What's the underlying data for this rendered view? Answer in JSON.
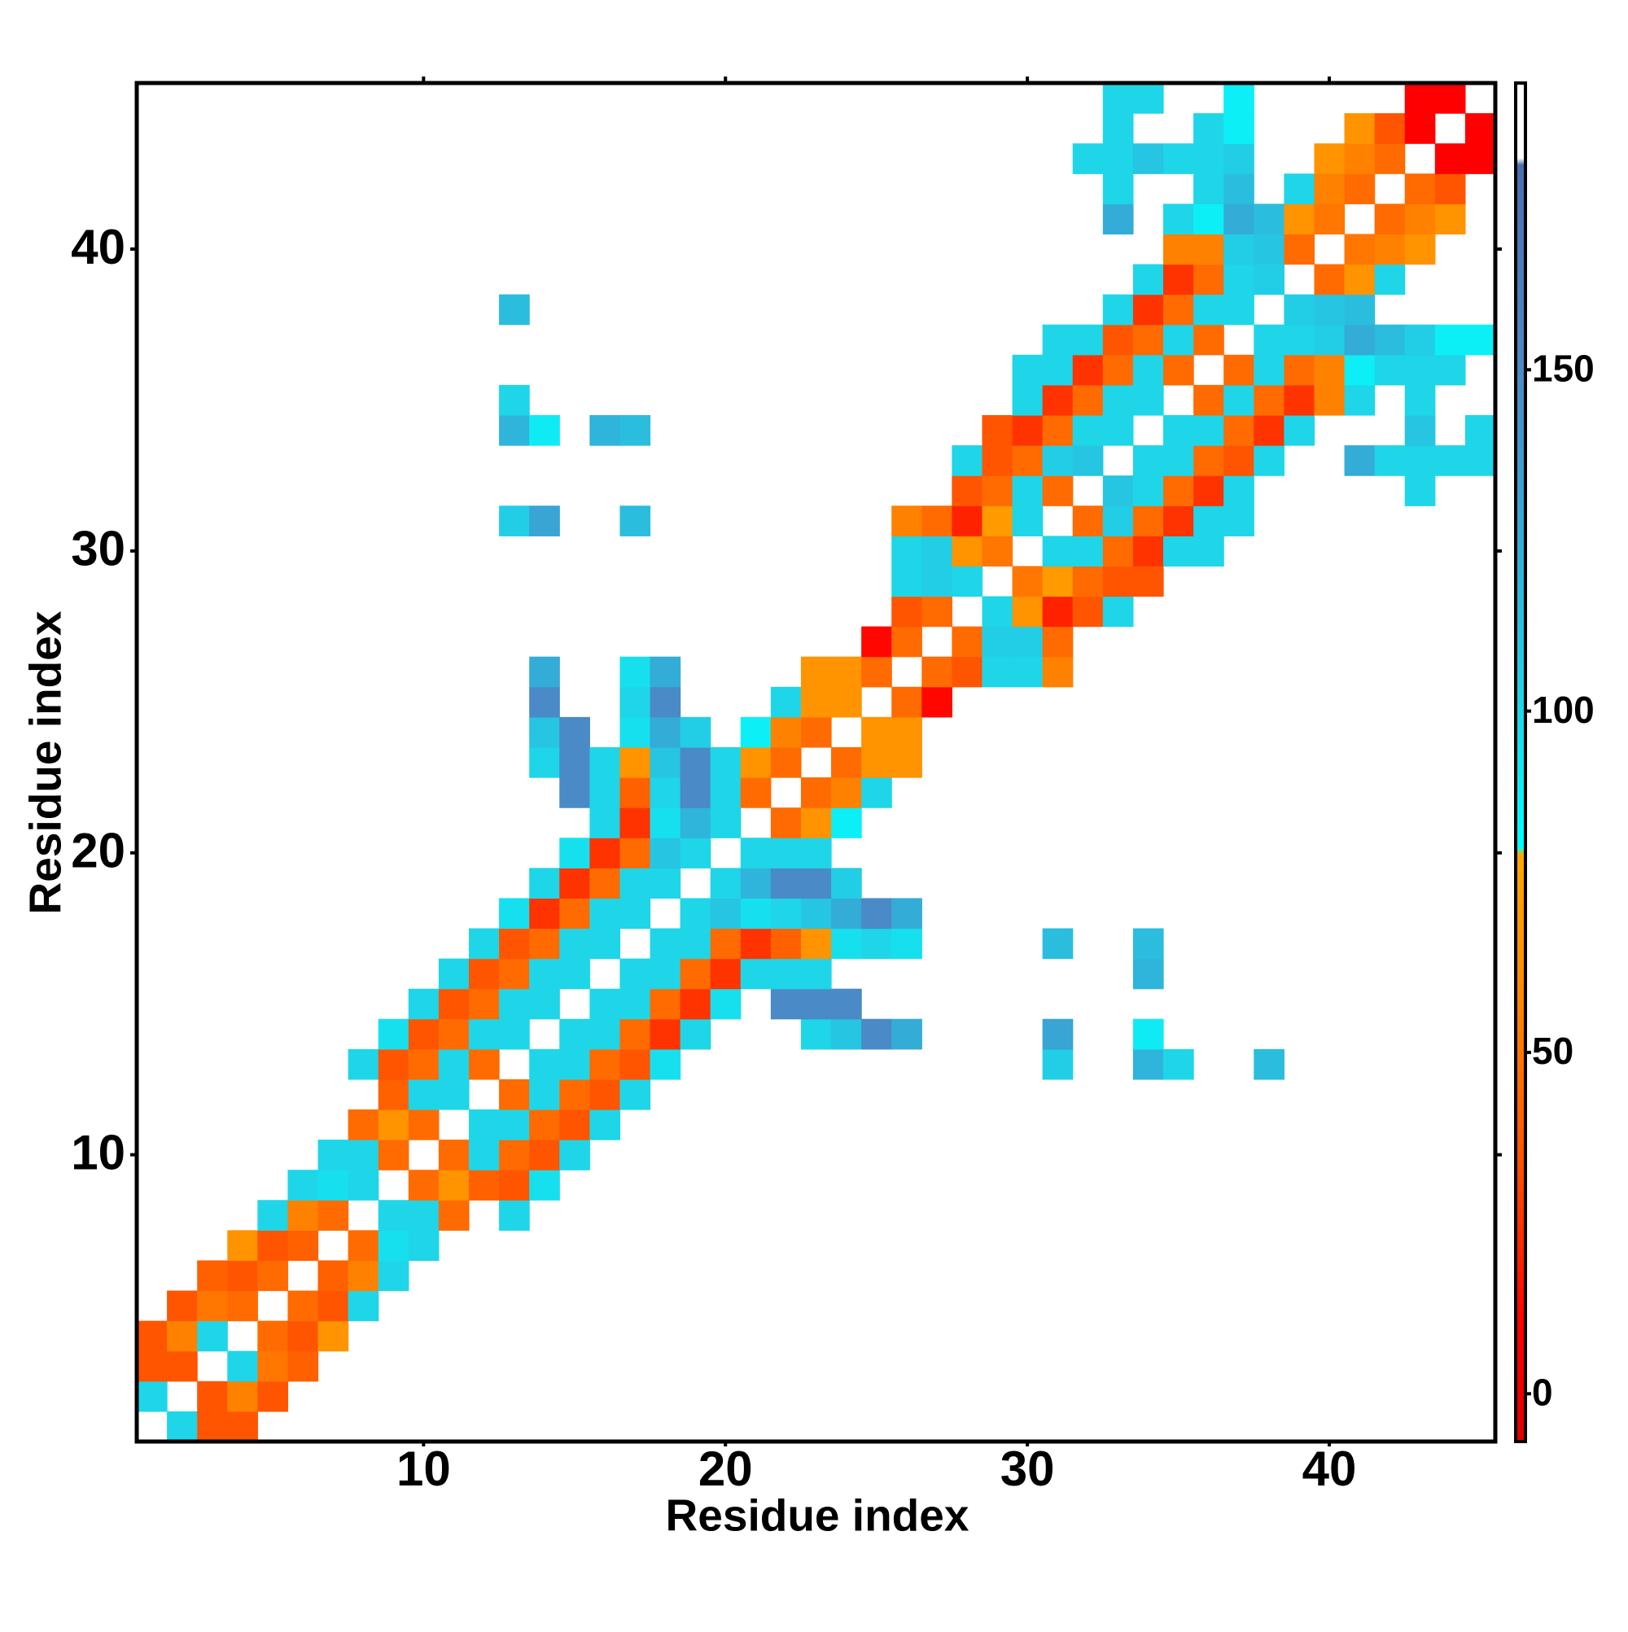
{
  "chart_data": {
    "type": "heatmap",
    "xlabel": "Residue index",
    "ylabel": "Residue index",
    "xlim": [
      0.5,
      45.5
    ],
    "ylim": [
      0.5,
      45.5
    ],
    "xticks": [
      10,
      20,
      30,
      40
    ],
    "yticks": [
      10,
      20,
      30,
      40
    ],
    "symmetric": true,
    "x": [
      2,
      3,
      4,
      3,
      4,
      5,
      4,
      5,
      6,
      5,
      6,
      7,
      6,
      7,
      8,
      7,
      8,
      9,
      8,
      9,
      10,
      9,
      10,
      11,
      13,
      10,
      11,
      12,
      13,
      14,
      11,
      12,
      13,
      14,
      15,
      12,
      13,
      14,
      15,
      16,
      13,
      14,
      15,
      16,
      17,
      14,
      15,
      16,
      17,
      18,
      31,
      34,
      35,
      38,
      15,
      16,
      17,
      18,
      19,
      23,
      24,
      25,
      26,
      31,
      34,
      16,
      17,
      18,
      19,
      20,
      22,
      23,
      24,
      17,
      18,
      19,
      20,
      21,
      22,
      23,
      34,
      18,
      19,
      20,
      21,
      22,
      23,
      24,
      25,
      26,
      31,
      34,
      19,
      20,
      21,
      22,
      23,
      24,
      25,
      26,
      20,
      21,
      22,
      23,
      24,
      21,
      22,
      23,
      22,
      23,
      24,
      23,
      24,
      25,
      24,
      25,
      26,
      25,
      26,
      26,
      27,
      27,
      28,
      29,
      30,
      31,
      28,
      29,
      30,
      31,
      29,
      30,
      31,
      32,
      33,
      30,
      31,
      32,
      33,
      34,
      31,
      32,
      33,
      34,
      35,
      36,
      32,
      33,
      34,
      35,
      36,
      37,
      33,
      34,
      35,
      36,
      37,
      43,
      34,
      35,
      36,
      37,
      38,
      41,
      42,
      43,
      44,
      45,
      35,
      36,
      37,
      38,
      39,
      43,
      45,
      36,
      37,
      38,
      39,
      40,
      41,
      43,
      37,
      38,
      39,
      40,
      41,
      42,
      43,
      44,
      38,
      39,
      40,
      41,
      42,
      43,
      44,
      45,
      39,
      40,
      41,
      40,
      41,
      42,
      41,
      42,
      43,
      42,
      43,
      44,
      43,
      44,
      44,
      45,
      45
    ],
    "y": [
      1,
      1,
      1,
      2,
      2,
      2,
      3,
      3,
      3,
      4,
      4,
      4,
      5,
      5,
      5,
      6,
      6,
      6,
      7,
      7,
      7,
      8,
      8,
      8,
      8,
      9,
      9,
      9,
      9,
      9,
      10,
      10,
      10,
      10,
      10,
      11,
      11,
      11,
      11,
      11,
      12,
      12,
      12,
      12,
      12,
      13,
      13,
      13,
      13,
      13,
      13,
      13,
      13,
      13,
      14,
      14,
      14,
      14,
      14,
      14,
      14,
      14,
      14,
      14,
      14,
      15,
      15,
      15,
      15,
      15,
      15,
      15,
      15,
      16,
      16,
      16,
      16,
      16,
      16,
      16,
      16,
      17,
      17,
      17,
      17,
      17,
      17,
      17,
      17,
      17,
      17,
      17,
      18,
      18,
      18,
      18,
      18,
      18,
      18,
      18,
      19,
      19,
      19,
      19,
      19,
      20,
      20,
      20,
      21,
      21,
      21,
      22,
      22,
      22,
      23,
      23,
      23,
      24,
      24,
      25,
      25,
      26,
      26,
      26,
      26,
      26,
      27,
      27,
      27,
      27,
      28,
      28,
      28,
      28,
      28,
      29,
      29,
      29,
      29,
      29,
      30,
      30,
      30,
      30,
      30,
      30,
      31,
      31,
      31,
      31,
      31,
      31,
      32,
      32,
      32,
      32,
      32,
      32,
      33,
      33,
      33,
      33,
      33,
      33,
      33,
      33,
      33,
      33,
      34,
      34,
      34,
      34,
      34,
      34,
      34,
      35,
      35,
      35,
      35,
      35,
      35,
      35,
      36,
      36,
      36,
      36,
      36,
      36,
      36,
      36,
      37,
      37,
      37,
      37,
      37,
      37,
      37,
      37,
      38,
      38,
      38,
      39,
      39,
      39,
      40,
      40,
      40,
      41,
      41,
      41,
      42,
      42,
      43,
      43,
      44
    ],
    "values": [
      100,
      35,
      35,
      35,
      55,
      35,
      100,
      50,
      40,
      45,
      35,
      65,
      45,
      35,
      100,
      40,
      55,
      100,
      45,
      95,
      100,
      100,
      100,
      45,
      100,
      45,
      65,
      40,
      35,
      95,
      45,
      100,
      45,
      35,
      100,
      100,
      100,
      45,
      35,
      100,
      45,
      100,
      45,
      35,
      100,
      100,
      100,
      45,
      35,
      95,
      105,
      120,
      100,
      115,
      100,
      100,
      45,
      25,
      100,
      100,
      110,
      150,
      125,
      130,
      90,
      100,
      100,
      45,
      25,
      95,
      150,
      150,
      150,
      100,
      100,
      45,
      25,
      100,
      100,
      100,
      120,
      100,
      100,
      45,
      25,
      40,
      65,
      95,
      100,
      95,
      115,
      115,
      100,
      110,
      95,
      100,
      110,
      125,
      150,
      125,
      100,
      120,
      150,
      150,
      105,
      100,
      100,
      100,
      45,
      65,
      88,
      45,
      55,
      100,
      45,
      65,
      65,
      65,
      65,
      45,
      12,
      45,
      35,
      100,
      100,
      55,
      45,
      105,
      105,
      45,
      100,
      65,
      20,
      35,
      100,
      50,
      70,
      45,
      35,
      35,
      100,
      100,
      45,
      25,
      100,
      100,
      45,
      105,
      45,
      25,
      100,
      100,
      110,
      100,
      45,
      25,
      100,
      100,
      100,
      100,
      45,
      35,
      100,
      125,
      100,
      100,
      100,
      100,
      100,
      100,
      45,
      25,
      100,
      110,
      100,
      45,
      100,
      45,
      25,
      55,
      100,
      100,
      45,
      100,
      45,
      55,
      88,
      100,
      100,
      100,
      100,
      100,
      105,
      125,
      115,
      105,
      88,
      88,
      105,
      110,
      115,
      45,
      65,
      100,
      50,
      55,
      65,
      45,
      55,
      65,
      45,
      35,
      10,
      10,
      10
    ],
    "clim": [
      -7,
      192
    ],
    "colorbar_ticks": [
      0,
      50,
      100,
      150
    ],
    "colorscale": [
      [
        -7,
        "#e00000"
      ],
      [
        10,
        "#ff0000"
      ],
      [
        35,
        "#ff5500"
      ],
      [
        60,
        "#ff8c00"
      ],
      [
        79,
        "#ffa800"
      ],
      [
        80,
        "#00ffff"
      ],
      [
        100,
        "#1ed6e8"
      ],
      [
        125,
        "#33acd8"
      ],
      [
        150,
        "#4a8ac6"
      ],
      [
        180,
        "#4a6fb0"
      ],
      [
        181,
        "#ffffff"
      ],
      [
        192,
        "#ffffff"
      ]
    ]
  }
}
